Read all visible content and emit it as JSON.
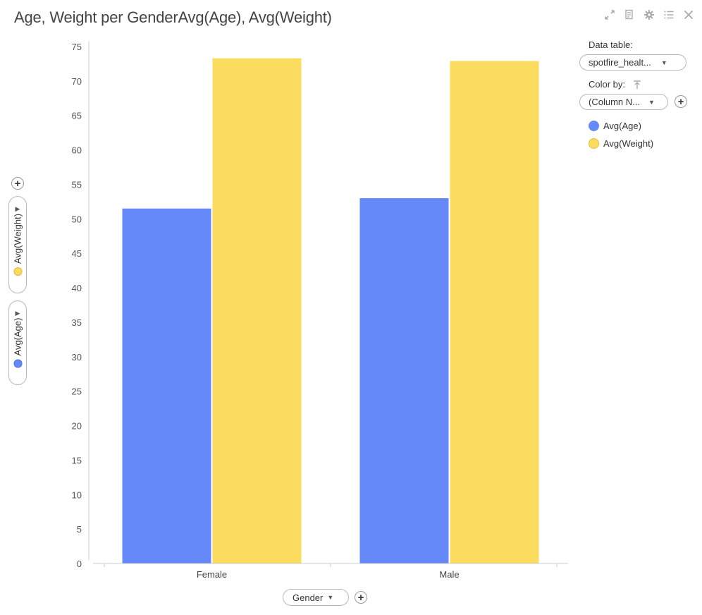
{
  "header": {
    "title": "Age, Weight per GenderAvg(Age), Avg(Weight)"
  },
  "toolbar_icons": [
    "expand-icon",
    "details-icon",
    "settings-icon",
    "list-icon",
    "close-icon"
  ],
  "legend_panel": {
    "data_table_label": "Data table:",
    "data_table_value": "spotfire_healt...",
    "color_by_label": "Color by:",
    "color_by_value": "(Column N...",
    "items": [
      {
        "label": "Avg(Age)",
        "color": "#6689f9"
      },
      {
        "label": "Avg(Weight)",
        "color": "#fcdc5e"
      }
    ]
  },
  "axis_selectors": {
    "x": "Gender",
    "y1": "Avg(Weight)",
    "y2": "Avg(Age)"
  },
  "chart_data": {
    "type": "bar",
    "categories": [
      "Female",
      "Male"
    ],
    "series": [
      {
        "name": "Avg(Age)",
        "color": "#6689f9",
        "values": [
          51.5,
          53.0
        ]
      },
      {
        "name": "Avg(Weight)",
        "color": "#fcdc5e",
        "values": [
          73.3,
          72.9
        ]
      }
    ],
    "ylim": [
      0,
      75
    ],
    "yticks": [
      0,
      5,
      10,
      15,
      20,
      25,
      30,
      35,
      40,
      45,
      50,
      55,
      60,
      65,
      70,
      75
    ]
  }
}
